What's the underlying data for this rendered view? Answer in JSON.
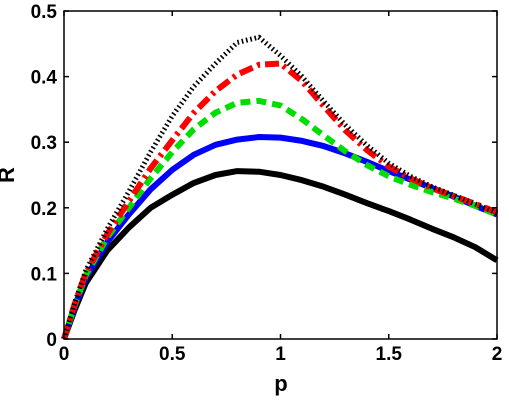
{
  "chart_data": {
    "type": "line",
    "title": "",
    "xlabel": "p",
    "ylabel": "R",
    "xlim": [
      0,
      2
    ],
    "ylim": [
      0,
      0.5
    ],
    "xticks": [
      "0",
      "0.5",
      "1",
      "1.5",
      "2"
    ],
    "yticks": [
      "0",
      "0.1",
      "0.2",
      "0.3",
      "0.4",
      "0.5"
    ],
    "grid": false,
    "legend": "none",
    "x": [
      0,
      0.05,
      0.1,
      0.2,
      0.3,
      0.4,
      0.5,
      0.6,
      0.7,
      0.8,
      0.9,
      1.0,
      1.1,
      1.2,
      1.3,
      1.4,
      1.5,
      1.6,
      1.7,
      1.8,
      1.9,
      2.0
    ],
    "series": [
      {
        "color": "#000000",
        "style": "solid",
        "values": [
          0,
          0.045,
          0.085,
          0.135,
          0.17,
          0.2,
          0.22,
          0.238,
          0.25,
          0.256,
          0.255,
          0.25,
          0.242,
          0.232,
          0.22,
          0.207,
          0.195,
          0.182,
          0.168,
          0.155,
          0.14,
          0.12
        ]
      },
      {
        "color": "#0000ff",
        "style": "solid",
        "values": [
          0,
          0.05,
          0.093,
          0.148,
          0.19,
          0.228,
          0.258,
          0.281,
          0.296,
          0.304,
          0.308,
          0.307,
          0.302,
          0.294,
          0.283,
          0.27,
          0.256,
          0.243,
          0.23,
          0.217,
          0.203,
          0.19
        ]
      },
      {
        "color": "#00dd00",
        "style": "dashed",
        "values": [
          0,
          0.052,
          0.097,
          0.155,
          0.2,
          0.245,
          0.285,
          0.32,
          0.345,
          0.36,
          0.363,
          0.356,
          0.335,
          0.31,
          0.286,
          0.265,
          0.248,
          0.235,
          0.224,
          0.214,
          0.203,
          0.19
        ]
      },
      {
        "color": "#ff0000",
        "style": "dashdot",
        "values": [
          0,
          0.054,
          0.1,
          0.16,
          0.21,
          0.26,
          0.303,
          0.345,
          0.378,
          0.403,
          0.418,
          0.42,
          0.393,
          0.355,
          0.318,
          0.288,
          0.263,
          0.245,
          0.23,
          0.218,
          0.206,
          0.193
        ]
      },
      {
        "color": "#000000",
        "style": "dotted",
        "values": [
          0,
          0.056,
          0.104,
          0.168,
          0.225,
          0.285,
          0.34,
          0.385,
          0.42,
          0.452,
          0.46,
          0.432,
          0.4,
          0.362,
          0.326,
          0.295,
          0.268,
          0.248,
          0.232,
          0.219,
          0.206,
          0.192
        ]
      }
    ]
  }
}
